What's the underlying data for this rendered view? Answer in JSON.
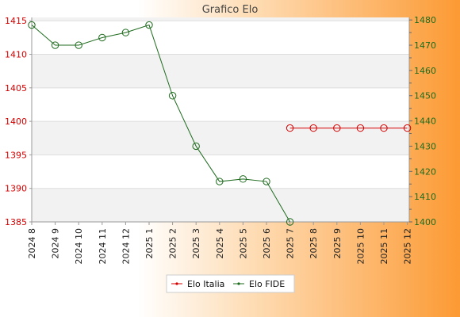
{
  "chart_data": {
    "type": "line",
    "title": "Grafico Elo",
    "categories": [
      "2024 8",
      "2024 9",
      "2024 10",
      "2024 11",
      "2024 12",
      "2025 1",
      "2025 2",
      "2025 3",
      "2025 4",
      "2025 5",
      "2025 6",
      "2025 7",
      "2025 8",
      "2025 9",
      "2025 10",
      "2025 11",
      "2025 12"
    ],
    "y_left": {
      "ticks": [
        1385,
        1390,
        1395,
        1400,
        1405,
        1410,
        1415
      ],
      "ylim": [
        1385,
        1415.5
      ],
      "color": "#d40000"
    },
    "y_right": {
      "ticks": [
        1400,
        1410,
        1420,
        1430,
        1440,
        1450,
        1460,
        1470,
        1480
      ],
      "ylim": [
        1400,
        1481
      ],
      "color": "#1e6b1e"
    },
    "series": [
      {
        "name": "Elo Italia",
        "axis": "left",
        "color": "#d40000",
        "values": [
          null,
          null,
          null,
          null,
          null,
          null,
          null,
          null,
          null,
          null,
          null,
          1399,
          1399,
          1399,
          1399,
          1399,
          1399
        ]
      },
      {
        "name": "Elo FIDE",
        "axis": "right",
        "color": "#1e6b1e",
        "values": [
          1478,
          1470,
          1470,
          1473,
          1475,
          1478,
          1450,
          1430,
          1416,
          1417,
          1416,
          1400,
          null,
          null,
          null,
          null,
          null
        ]
      }
    ],
    "grid": true,
    "legend": "bottom-center"
  }
}
